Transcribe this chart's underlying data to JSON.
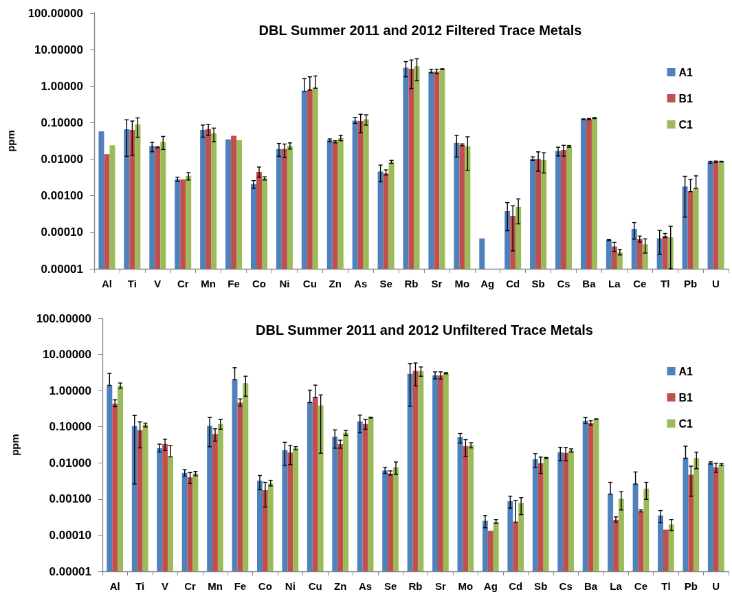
{
  "chart_data": [
    {
      "type": "bar",
      "title": "DBL Summer 2011 and 2012 Filtered Trace Metals",
      "ylabel": "ppm",
      "log": true,
      "legend": "top right",
      "categories": [
        "Al",
        "Ti",
        "V",
        "Cr",
        "Mn",
        "Fe",
        "Co",
        "Ni",
        "Cu",
        "Zn",
        "As",
        "Se",
        "Rb",
        "Sr",
        "Mo",
        "Ag",
        "Cd",
        "Sb",
        "Cs",
        "Ba",
        "La",
        "Ce",
        "Tl",
        "Pb",
        "U"
      ],
      "ylim": [
        1e-05,
        100
      ],
      "yticks": [
        {
          "value": 1e-05,
          "label": "0.00001"
        },
        {
          "value": 0.0001,
          "label": "0.00010"
        },
        {
          "value": 0.001,
          "label": "0.00100"
        },
        {
          "value": 0.01,
          "label": "0.01000"
        },
        {
          "value": 0.1,
          "label": "0.10000"
        },
        {
          "value": 1,
          "label": "1.00000"
        },
        {
          "value": 10,
          "label": "10.00000"
        },
        {
          "value": 100,
          "label": "100.00000"
        }
      ],
      "series": [
        {
          "name": "A1",
          "color": "#4f81bd",
          "values": [
            0.058,
            0.066,
            0.023,
            0.0028,
            0.063,
            0.035,
            0.0021,
            0.019,
            0.74,
            0.033,
            0.114,
            0.0046,
            3.2,
            2.5,
            0.028,
            6.8e-05,
            0.00038,
            0.0103,
            0.0168,
            0.124,
            6.1e-05,
            0.000124,
            6.8e-05,
            0.0018,
            0.0083
          ],
          "errors": [
            null,
            [
              0.012,
              0.12
            ],
            [
              0.016,
              0.029
            ],
            [
              0.0025,
              0.0032
            ],
            [
              0.04,
              0.086
            ],
            null,
            [
              0.0016,
              0.0026
            ],
            [
              0.012,
              0.027
            ],
            [
              0.72,
              1.6
            ],
            [
              0.03,
              0.036
            ],
            [
              0.096,
              0.14
            ],
            [
              0.0024,
              0.0069
            ],
            [
              1.8,
              4.7
            ],
            [
              2.3,
              2.9
            ],
            [
              0.0115,
              0.045
            ],
            null,
            [
              0.00011,
              0.00065
            ],
            [
              0.0093,
              0.0116
            ],
            [
              0.0123,
              0.0213
            ],
            [
              0.122,
              0.127
            ],
            [
              5.9e-05,
              6.3e-05
            ],
            [
              6.5e-05,
              0.000185
            ],
            [
              2.5e-05,
              0.000112
            ],
            [
              0.00026,
              0.0034
            ],
            [
              0.0078,
              0.0088
            ]
          ]
        },
        {
          "name": "B1",
          "color": "#c0504d",
          "values": [
            0.0137,
            0.063,
            0.021,
            0.0028,
            0.067,
            0.044,
            0.0045,
            0.019,
            0.8,
            0.03,
            0.111,
            0.0041,
            3.0,
            2.5,
            0.0247,
            null,
            0.00028,
            0.0101,
            0.0181,
            0.125,
            4.1e-05,
            6.5e-05,
            7.9e-05,
            0.0013,
            0.0085
          ],
          "errors": [
            null,
            [
              0.0127,
              0.111
            ],
            [
              0.0205,
              0.0218
            ],
            null,
            [
              0.045,
              0.089
            ],
            null,
            [
              0.0032,
              0.0061
            ],
            [
              0.011,
              0.026
            ],
            [
              0.78,
              1.8
            ],
            [
              0.028,
              0.032
            ],
            [
              0.053,
              0.17
            ],
            [
              0.0037,
              0.0051
            ],
            [
              0.86,
              5.2
            ],
            [
              2.2,
              2.9
            ],
            [
              0.0234,
              0.0262
            ],
            null,
            [
              3.1e-05,
              0.00053
            ],
            [
              0.0047,
              0.0159
            ],
            [
              0.0122,
              0.024
            ],
            [
              0.12,
              0.13
            ],
            [
              3e-05,
              5.3e-05
            ],
            [
              5.4e-05,
              7.9e-05
            ],
            [
              7.2e-05,
              9.3e-05
            ],
            [
              0.0013,
              0.0028
            ],
            [
              0.0082,
              0.0089
            ]
          ]
        },
        {
          "name": "C1",
          "color": "#9bbb59",
          "values": [
            0.024,
            0.089,
            0.03,
            0.0035,
            0.051,
            0.033,
            0.003,
            0.023,
            0.9,
            0.038,
            0.124,
            0.0083,
            3.5,
            2.9,
            0.0226,
            null,
            0.0005,
            0.0095,
            0.0223,
            0.134,
            2.8e-05,
            4.7e-05,
            7.3e-05,
            0.0016,
            0.0086
          ],
          "errors": [
            null,
            [
              0.04,
              0.135
            ],
            [
              0.0185,
              0.042
            ],
            [
              0.0027,
              0.0043
            ],
            [
              0.03,
              0.071
            ],
            null,
            [
              0.0027,
              0.0033
            ],
            [
              0.019,
              0.028
            ],
            [
              0.88,
              1.9
            ],
            [
              0.032,
              0.045
            ],
            [
              0.086,
              0.164
            ],
            [
              0.0077,
              0.0093
            ],
            [
              1.4,
              5.6
            ],
            [
              2.85,
              3.0
            ],
            [
              0.005,
              0.041
            ],
            null,
            [
              0.00017,
              0.00082
            ],
            [
              0.0042,
              0.015
            ],
            [
              0.0213,
              0.0237
            ],
            [
              0.129,
              0.139
            ],
            [
              2.4e-05,
              3.4e-05
            ],
            [
              2.7e-05,
              6.6e-05
            ],
            [
              1e-05,
              0.000146
            ],
            [
              0.0016,
              0.0035
            ],
            [
              0.0084,
              0.0088
            ]
          ]
        }
      ]
    },
    {
      "type": "bar",
      "title": "DBL Summer 2011 and 2012 Unfiltered Trace Metals",
      "ylabel": "ppm",
      "log": true,
      "legend": "top right",
      "categories": [
        "Al",
        "Ti",
        "V",
        "Cr",
        "Mn",
        "Fe",
        "Co",
        "Ni",
        "Cu",
        "Zn",
        "As",
        "Se",
        "Rb",
        "Sr",
        "Mo",
        "Ag",
        "Cd",
        "Sb",
        "Cs",
        "Ba",
        "La",
        "Ce",
        "Tl",
        "Pb",
        "U"
      ],
      "ylim": [
        1e-05,
        100
      ],
      "yticks": [
        {
          "value": 1e-05,
          "label": "0.00001"
        },
        {
          "value": 0.0001,
          "label": "0.00010"
        },
        {
          "value": 0.001,
          "label": "0.00100"
        },
        {
          "value": 0.01,
          "label": "0.01000"
        },
        {
          "value": 0.1,
          "label": "0.10000"
        },
        {
          "value": 1,
          "label": "1.00000"
        },
        {
          "value": 10,
          "label": "10.00000"
        },
        {
          "value": 100,
          "label": "100.00000"
        }
      ],
      "series": [
        {
          "name": "A1",
          "color": "#4f81bd",
          "values": [
            1.42,
            0.104,
            0.0255,
            0.0053,
            0.105,
            2.0,
            0.0032,
            0.0225,
            0.48,
            0.053,
            0.14,
            0.0062,
            2.9,
            2.65,
            0.051,
            0.00025,
            0.00087,
            0.0126,
            0.0195,
            0.147,
            0.00138,
            0.0026,
            0.00035,
            0.0136,
            0.0099
          ],
          "errors": [
            [
              1.4,
              3.0
            ],
            [
              0.0026,
              0.205
            ],
            [
              0.02,
              0.033
            ],
            [
              0.0043,
              0.0065
            ],
            [
              0.028,
              0.18
            ],
            [
              2.0,
              4.3
            ],
            [
              0.0018,
              0.0045
            ],
            [
              0.0085,
              0.037
            ],
            [
              0.47,
              1.03
            ],
            [
              0.0255,
              0.082
            ],
            [
              0.068,
              0.21
            ],
            [
              0.0051,
              0.0075
            ],
            [
              0.37,
              5.6
            ],
            [
              2.1,
              3.3
            ],
            [
              0.0355,
              0.065
            ],
            [
              0.00016,
              0.00035
            ],
            [
              0.00056,
              0.0012
            ],
            [
              0.0074,
              0.018
            ],
            [
              0.0115,
              0.027
            ],
            [
              0.121,
              0.179
            ],
            [
              0.00137,
              0.0029
            ],
            [
              0.0026,
              0.0056
            ],
            [
              0.00022,
              0.00048
            ],
            [
              0.0135,
              0.029
            ],
            [
              0.0093,
              0.0107
            ]
          ]
        },
        {
          "name": "B1",
          "color": "#c0504d",
          "values": [
            0.435,
            0.08,
            0.033,
            0.004,
            0.063,
            0.47,
            0.00175,
            0.0194,
            0.65,
            0.033,
            0.119,
            0.0051,
            3.5,
            2.65,
            0.029,
            0.000133,
            0.00023,
            0.0098,
            0.019,
            0.127,
            0.000265,
            0.00046,
            0.000142,
            0.0047,
            0.0075
          ],
          "errors": [
            [
              0.36,
              0.555
            ],
            [
              0.026,
              0.136
            ],
            [
              0.022,
              0.045
            ],
            [
              0.0027,
              0.0054
            ],
            [
              0.04,
              0.088
            ],
            [
              0.37,
              0.59
            ],
            [
              0.0006,
              0.0029
            ],
            [
              0.009,
              0.03
            ],
            [
              0.64,
              1.42
            ],
            [
              0.0255,
              0.0425
            ],
            [
              0.085,
              0.158
            ],
            [
              0.0046,
              0.006
            ],
            [
              1.35,
              5.8
            ],
            [
              2.1,
              3.3
            ],
            [
              0.015,
              0.044
            ],
            null,
            [
              0.00023,
              0.00092
            ],
            [
              0.0051,
              0.0145
            ],
            [
              0.0114,
              0.0267
            ],
            [
              0.111,
              0.147
            ],
            [
              0.00023,
              0.00032
            ],
            [
              0.00044,
              0.0005
            ],
            null,
            [
              0.0012,
              0.0081
            ],
            [
              0.0055,
              0.0098
            ]
          ]
        },
        {
          "name": "C1",
          "color": "#9bbb59",
          "values": [
            1.37,
            0.114,
            0.0148,
            0.0051,
            0.119,
            1.62,
            0.0027,
            0.0255,
            0.39,
            0.068,
            0.179,
            0.0076,
            3.5,
            3.0,
            0.031,
            0.00023,
            0.00077,
            0.0136,
            0.022,
            0.163,
            0.00102,
            0.00194,
            0.0002,
            0.0136,
            0.009
          ],
          "errors": [
            [
              1.16,
              1.62
            ],
            [
              0.099,
              0.126
            ],
            [
              0.0147,
              0.03
            ],
            [
              0.0044,
              0.0058
            ],
            [
              0.085,
              0.158
            ],
            [
              0.7,
              2.5
            ],
            [
              0.0023,
              0.0033
            ],
            [
              0.023,
              0.028
            ],
            [
              0.0185,
              0.76
            ],
            [
              0.0575,
              0.079
            ],
            [
              0.174,
              0.183
            ],
            [
              0.0048,
              0.0106
            ],
            [
              2.5,
              4.5
            ],
            [
              2.9,
              3.15
            ],
            [
              0.026,
              0.036
            ],
            [
              0.000215,
              0.00027
            ],
            [
              0.00037,
              0.0011
            ],
            [
              0.013,
              0.0141
            ],
            [
              0.0198,
              0.0244
            ],
            [
              0.161,
              0.166
            ],
            [
              0.0005,
              0.0016
            ],
            [
              0.00098,
              0.0029
            ],
            [
              0.000135,
              0.00027
            ],
            [
              0.0069,
              0.0198
            ],
            [
              0.0085,
              0.0095
            ]
          ]
        }
      ]
    }
  ]
}
